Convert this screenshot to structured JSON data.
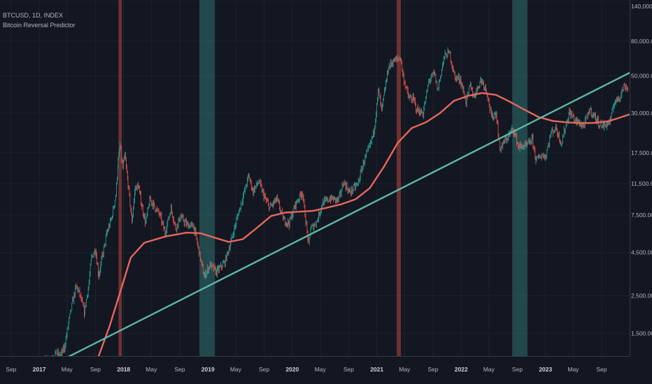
{
  "header": {
    "symbol_line": "BTCUSD, 1D, INDEX",
    "indicator_name": "Bitcoin Reversal Predictor"
  },
  "colors": {
    "background": "#131722",
    "grid": "#1e222d",
    "axis_line": "#363a45",
    "axis_text": "#b2b5be",
    "up_candle": "#26a69a",
    "down_candle": "#ef5350",
    "trend_line": "#5fb7a9",
    "moving_average": "#e8675c",
    "top_band": "#b9493f",
    "bottom_band": "#2f7a73"
  },
  "chart_data": {
    "type": "line",
    "y_scale": "log",
    "ylim": [
      1100,
      140000
    ],
    "x_range": [
      "2016-07-15",
      "2023-12-31"
    ],
    "y_tick_labels": [
      {
        "value": 140000,
        "label": "140,000.00"
      },
      {
        "value": 80000,
        "label": "80,000.00"
      },
      {
        "value": 50000,
        "label": "50,000.00"
      },
      {
        "value": 30000,
        "label": "30,000.00"
      },
      {
        "value": 17500,
        "label": "17,500.00"
      },
      {
        "value": 11500,
        "label": "11,500.00"
      },
      {
        "value": 7500,
        "label": "7,500.00"
      },
      {
        "value": 4500,
        "label": "4,500.00"
      },
      {
        "value": 2500,
        "label": "2,500.00"
      },
      {
        "value": 1500,
        "label": "1,500.00"
      }
    ],
    "x_tick_labels": [
      {
        "date": "2016-09-01",
        "label": "Sep",
        "bold": false
      },
      {
        "date": "2017-01-01",
        "label": "2017",
        "bold": true
      },
      {
        "date": "2017-05-01",
        "label": "May",
        "bold": false
      },
      {
        "date": "2017-09-01",
        "label": "Sep",
        "bold": false
      },
      {
        "date": "2018-01-01",
        "label": "2018",
        "bold": true
      },
      {
        "date": "2018-05-01",
        "label": "May",
        "bold": false
      },
      {
        "date": "2018-09-01",
        "label": "Sep",
        "bold": false
      },
      {
        "date": "2019-01-01",
        "label": "2019",
        "bold": true
      },
      {
        "date": "2019-05-01",
        "label": "May",
        "bold": false
      },
      {
        "date": "2019-09-01",
        "label": "Sep",
        "bold": false
      },
      {
        "date": "2020-01-01",
        "label": "2020",
        "bold": true
      },
      {
        "date": "2020-05-01",
        "label": "May",
        "bold": false
      },
      {
        "date": "2020-09-01",
        "label": "Sep",
        "bold": false
      },
      {
        "date": "2021-01-01",
        "label": "2021",
        "bold": true
      },
      {
        "date": "2021-05-01",
        "label": "May",
        "bold": false
      },
      {
        "date": "2021-09-01",
        "label": "Sep",
        "bold": false
      },
      {
        "date": "2022-01-01",
        "label": "2022",
        "bold": true
      },
      {
        "date": "2022-05-01",
        "label": "May",
        "bold": false
      },
      {
        "date": "2022-09-01",
        "label": "Sep",
        "bold": false
      },
      {
        "date": "2023-01-01",
        "label": "2023",
        "bold": true
      },
      {
        "date": "2023-05-01",
        "label": "May",
        "bold": false
      },
      {
        "date": "2023-09-01",
        "label": "Sep",
        "bold": false
      }
    ],
    "top_bands": [
      {
        "start": "2017-12-10",
        "end": "2017-12-24"
      },
      {
        "start": "2021-03-28",
        "end": "2021-04-15"
      }
    ],
    "bottom_bands": [
      {
        "start": "2018-11-25",
        "end": "2019-01-31"
      },
      {
        "start": "2022-08-10",
        "end": "2022-10-15"
      }
    ],
    "price_series": {
      "name": "BTCUSD",
      "points": [
        [
          "2016-07-15",
          660
        ],
        [
          "2016-09-15",
          610
        ],
        [
          "2016-11-15",
          720
        ],
        [
          "2017-01-01",
          990
        ],
        [
          "2017-02-15",
          1050
        ],
        [
          "2017-03-15",
          1150
        ],
        [
          "2017-04-01",
          1090
        ],
        [
          "2017-04-20",
          1240
        ],
        [
          "2017-05-10",
          1800
        ],
        [
          "2017-05-25",
          2300
        ],
        [
          "2017-06-10",
          2850
        ],
        [
          "2017-06-25",
          2550
        ],
        [
          "2017-07-15",
          2000
        ],
        [
          "2017-08-01",
          2750
        ],
        [
          "2017-08-15",
          4200
        ],
        [
          "2017-09-01",
          4700
        ],
        [
          "2017-09-15",
          3300
        ],
        [
          "2017-10-01",
          4300
        ],
        [
          "2017-10-20",
          5800
        ],
        [
          "2017-11-10",
          7200
        ],
        [
          "2017-11-28",
          9800
        ],
        [
          "2017-12-08",
          15500
        ],
        [
          "2017-12-17",
          19200
        ],
        [
          "2017-12-28",
          14200
        ],
        [
          "2018-01-06",
          16800
        ],
        [
          "2018-01-20",
          11500
        ],
        [
          "2018-02-06",
          6900
        ],
        [
          "2018-02-20",
          10800
        ],
        [
          "2018-03-05",
          11200
        ],
        [
          "2018-03-20",
          8600
        ],
        [
          "2018-04-06",
          6700
        ],
        [
          "2018-04-25",
          9300
        ],
        [
          "2018-05-15",
          8400
        ],
        [
          "2018-06-05",
          7600
        ],
        [
          "2018-06-29",
          5900
        ],
        [
          "2018-07-25",
          8200
        ],
        [
          "2018-08-14",
          6300
        ],
        [
          "2018-09-05",
          7300
        ],
        [
          "2018-10-01",
          6600
        ],
        [
          "2018-11-01",
          6400
        ],
        [
          "2018-11-20",
          4800
        ],
        [
          "2018-12-15",
          3250
        ],
        [
          "2019-01-10",
          3800
        ],
        [
          "2019-02-07",
          3450
        ],
        [
          "2019-03-15",
          3950
        ],
        [
          "2019-04-10",
          5200
        ],
        [
          "2019-05-15",
          7900
        ],
        [
          "2019-06-26",
          12800
        ],
        [
          "2019-07-15",
          10400
        ],
        [
          "2019-08-10",
          11800
        ],
        [
          "2019-09-01",
          9600
        ],
        [
          "2019-09-25",
          8300
        ],
        [
          "2019-10-26",
          9300
        ],
        [
          "2019-11-25",
          7000
        ],
        [
          "2019-12-18",
          6700
        ],
        [
          "2020-01-15",
          8700
        ],
        [
          "2020-02-13",
          10300
        ],
        [
          "2020-03-12",
          5000
        ],
        [
          "2020-03-20",
          6200
        ],
        [
          "2020-04-15",
          6800
        ],
        [
          "2020-05-10",
          8800
        ],
        [
          "2020-06-15",
          9400
        ],
        [
          "2020-07-20",
          9200
        ],
        [
          "2020-08-10",
          11800
        ],
        [
          "2020-09-05",
          10200
        ],
        [
          "2020-10-10",
          11400
        ],
        [
          "2020-11-05",
          15500
        ],
        [
          "2020-12-01",
          19000
        ],
        [
          "2020-12-20",
          23800
        ],
        [
          "2021-01-08",
          40500
        ],
        [
          "2021-01-22",
          31000
        ],
        [
          "2021-02-20",
          56000
        ],
        [
          "2021-03-13",
          61000
        ],
        [
          "2021-04-14",
          63500
        ],
        [
          "2021-04-25",
          49000
        ],
        [
          "2021-05-19",
          37000
        ],
        [
          "2021-06-10",
          36000
        ],
        [
          "2021-06-22",
          31500
        ],
        [
          "2021-07-20",
          29800
        ],
        [
          "2021-08-15",
          47000
        ],
        [
          "2021-09-07",
          51500
        ],
        [
          "2021-09-21",
          41000
        ],
        [
          "2021-10-20",
          65000
        ],
        [
          "2021-11-10",
          68500
        ],
        [
          "2021-12-05",
          49000
        ],
        [
          "2021-12-28",
          47500
        ],
        [
          "2022-01-22",
          35000
        ],
        [
          "2022-02-10",
          44000
        ],
        [
          "2022-02-24",
          37500
        ],
        [
          "2022-03-28",
          47500
        ],
        [
          "2022-04-20",
          41500
        ],
        [
          "2022-05-12",
          28500
        ],
        [
          "2022-06-01",
          30000
        ],
        [
          "2022-06-18",
          18500
        ],
        [
          "2022-07-10",
          20500
        ],
        [
          "2022-08-14",
          24400
        ],
        [
          "2022-09-06",
          19000
        ],
        [
          "2022-10-10",
          19200
        ],
        [
          "2022-11-05",
          21000
        ],
        [
          "2022-11-21",
          15800
        ],
        [
          "2022-12-15",
          17000
        ],
        [
          "2023-01-01",
          16600
        ],
        [
          "2023-01-25",
          23000
        ],
        [
          "2023-02-15",
          24500
        ],
        [
          "2023-03-10",
          20000
        ],
        [
          "2023-04-14",
          30300
        ],
        [
          "2023-05-15",
          26800
        ],
        [
          "2023-06-15",
          25200
        ],
        [
          "2023-07-13",
          31400
        ],
        [
          "2023-08-20",
          26100
        ],
        [
          "2023-09-12",
          25200
        ],
        [
          "2023-10-10",
          27200
        ],
        [
          "2023-10-24",
          34500
        ],
        [
          "2023-11-15",
          37000
        ],
        [
          "2023-12-08",
          43500
        ],
        [
          "2023-12-25",
          42000
        ]
      ]
    },
    "trend_line": {
      "name": "Trend",
      "points": [
        [
          "2016-07-15",
          680
        ],
        [
          "2023-12-31",
          52000
        ]
      ]
    },
    "moving_average": {
      "name": "MA",
      "points": [
        [
          "2017-06-01",
          660
        ],
        [
          "2017-07-15",
          720
        ],
        [
          "2017-09-15",
          1100
        ],
        [
          "2017-11-01",
          1650
        ],
        [
          "2017-12-20",
          2700
        ],
        [
          "2018-02-01",
          4200
        ],
        [
          "2018-04-01",
          5150
        ],
        [
          "2018-07-01",
          5600
        ],
        [
          "2018-10-01",
          5900
        ],
        [
          "2018-12-01",
          5850
        ],
        [
          "2019-02-01",
          5500
        ],
        [
          "2019-04-01",
          5200
        ],
        [
          "2019-06-01",
          5400
        ],
        [
          "2019-08-01",
          6300
        ],
        [
          "2019-10-01",
          7400
        ],
        [
          "2019-12-01",
          7750
        ],
        [
          "2020-02-01",
          7850
        ],
        [
          "2020-04-01",
          7950
        ],
        [
          "2020-06-01",
          8300
        ],
        [
          "2020-08-01",
          8700
        ],
        [
          "2020-10-01",
          9300
        ],
        [
          "2020-12-01",
          10800
        ],
        [
          "2021-02-01",
          14500
        ],
        [
          "2021-04-01",
          20000
        ],
        [
          "2021-06-01",
          24500
        ],
        [
          "2021-08-01",
          26500
        ],
        [
          "2021-10-01",
          30000
        ],
        [
          "2021-12-01",
          35500
        ],
        [
          "2022-02-01",
          38000
        ],
        [
          "2022-04-01",
          39500
        ],
        [
          "2022-06-01",
          38500
        ],
        [
          "2022-08-01",
          35000
        ],
        [
          "2022-10-01",
          31500
        ],
        [
          "2022-12-01",
          28500
        ],
        [
          "2023-02-01",
          27000
        ],
        [
          "2023-04-01",
          26500
        ],
        [
          "2023-06-01",
          26200
        ],
        [
          "2023-08-01",
          26300
        ],
        [
          "2023-10-01",
          26900
        ],
        [
          "2023-12-31",
          29500
        ]
      ]
    }
  }
}
